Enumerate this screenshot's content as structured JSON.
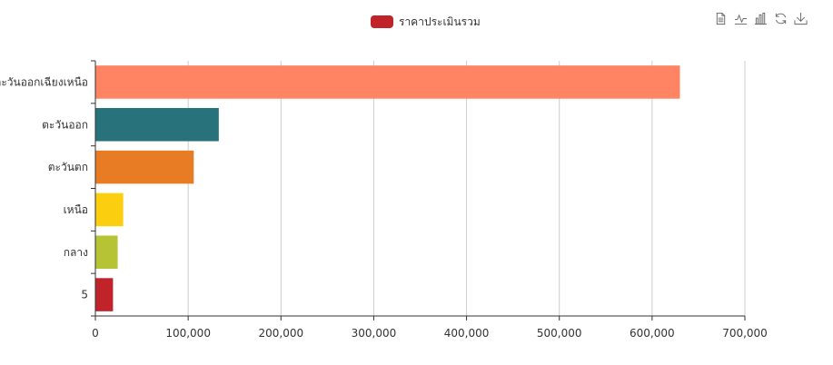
{
  "legend": {
    "label": "ราคาประเมินรวม",
    "color": "#c1232b"
  },
  "toolbox": {
    "icons": [
      "data-view-icon",
      "line-chart-icon",
      "bar-chart-icon",
      "restore-icon",
      "save-image-icon"
    ]
  },
  "chart_data": {
    "type": "bar",
    "orientation": "horizontal",
    "categories": [
      "5",
      "กลาง",
      "เหนือ",
      "ตะวันตก",
      "ตะวันออก",
      "ตะวันออกเฉียงเหนือ"
    ],
    "series": [
      {
        "name": "ราคาประเมินรวม",
        "values": [
          19000,
          24000,
          30000,
          106000,
          133000,
          630000
        ],
        "colors": [
          "#c1232b",
          "#b5c334",
          "#fcce10",
          "#e87c25",
          "#27727b",
          "#fe8463"
        ]
      }
    ],
    "x_ticks": [
      "0",
      "100,000",
      "200,000",
      "300,000",
      "400,000",
      "500,000",
      "600,000",
      "700,000"
    ],
    "xlim": [
      0,
      700000
    ],
    "title": "",
    "xlabel": "",
    "ylabel": "",
    "grid": true,
    "legend_position": "top-center"
  }
}
